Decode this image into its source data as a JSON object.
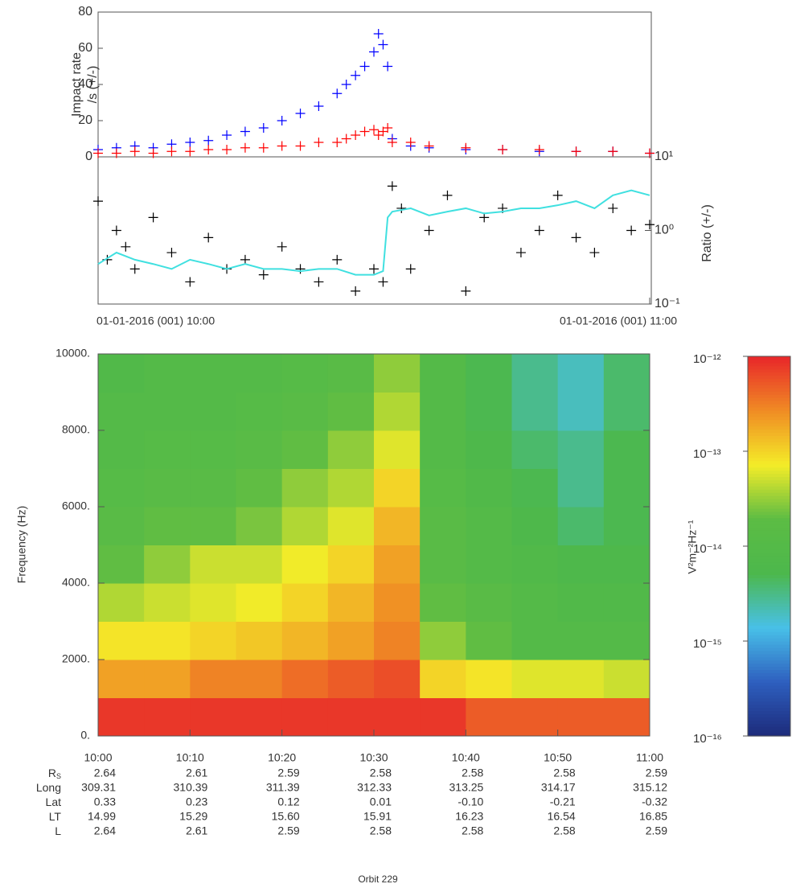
{
  "chart_data": [
    {
      "type": "scatter",
      "ylabel": [
        "Impact rate",
        "/s (+/-)"
      ],
      "xlim": [
        0,
        60
      ],
      "ylim": [
        0,
        80
      ],
      "yticks": [
        0,
        20,
        40,
        60,
        80
      ],
      "series": [
        {
          "color": "#0000ff",
          "x": [
            0,
            2,
            4,
            6,
            8,
            10,
            12,
            14,
            16,
            18,
            20,
            22,
            24,
            26,
            27,
            28,
            29,
            30,
            30.5,
            31,
            31.5,
            32,
            34,
            36,
            40,
            44,
            48,
            52,
            56,
            60
          ],
          "values": [
            4,
            5,
            6,
            5,
            7,
            8,
            9,
            12,
            14,
            16,
            20,
            24,
            28,
            35,
            40,
            45,
            50,
            58,
            68,
            62,
            50,
            10,
            6,
            5,
            4,
            4,
            3,
            3,
            3,
            2
          ]
        },
        {
          "color": "#ff0000",
          "x": [
            0,
            2,
            4,
            6,
            8,
            10,
            12,
            14,
            16,
            18,
            20,
            22,
            24,
            26,
            27,
            28,
            29,
            30,
            30.5,
            31,
            31.5,
            32,
            34,
            36,
            40,
            44,
            48,
            52,
            56,
            60
          ],
          "values": [
            2,
            2,
            3,
            2,
            3,
            3,
            4,
            4,
            5,
            5,
            6,
            6,
            8,
            8,
            10,
            12,
            14,
            15,
            12,
            14,
            16,
            8,
            8,
            6,
            5,
            4,
            4,
            3,
            3,
            2
          ]
        }
      ]
    },
    {
      "type": "scatter",
      "log": true,
      "ylabel": "Ratio (+/-)",
      "xlim": [
        0,
        60
      ],
      "xticks": [
        {
          "value": 0,
          "label": "01-01-2016 (001) 10:00"
        },
        {
          "value": 60,
          "label": "01-01-2016 (001) 11:00"
        }
      ],
      "ylim": [
        0.1,
        10
      ],
      "yticks": [
        {
          "value": 0.1,
          "label": "10⁻¹"
        },
        {
          "value": 1,
          "label": "10⁰"
        },
        {
          "value": 10,
          "label": "10¹"
        }
      ],
      "series": [
        {
          "color": "#000000",
          "x": [
            0,
            1,
            2,
            3,
            4,
            6,
            8,
            10,
            12,
            14,
            16,
            18,
            20,
            22,
            24,
            26,
            28,
            30,
            31,
            32,
            33,
            34,
            36,
            38,
            40,
            42,
            44,
            46,
            48,
            50,
            52,
            54,
            56,
            58,
            60
          ],
          "values": [
            2.5,
            0.4,
            1,
            0.6,
            0.3,
            1.5,
            0.5,
            0.2,
            0.8,
            0.3,
            0.4,
            0.25,
            0.6,
            0.3,
            0.2,
            0.4,
            0.15,
            0.3,
            0.2,
            4,
            2,
            0.3,
            1,
            3,
            0.15,
            1.5,
            2,
            0.5,
            1,
            3,
            0.8,
            0.5,
            2,
            1,
            1.2
          ]
        },
        {
          "type": "line",
          "color": "#40e0e0",
          "x": [
            0,
            2,
            4,
            6,
            8,
            10,
            12,
            14,
            16,
            18,
            20,
            22,
            24,
            26,
            28,
            30,
            31,
            31.5,
            32,
            34,
            36,
            38,
            40,
            42,
            44,
            46,
            48,
            50,
            52,
            54,
            56,
            58,
            60
          ],
          "values": [
            0.35,
            0.5,
            0.4,
            0.35,
            0.3,
            0.4,
            0.35,
            0.3,
            0.35,
            0.3,
            0.3,
            0.28,
            0.3,
            0.3,
            0.25,
            0.25,
            0.28,
            1.5,
            1.8,
            2,
            1.6,
            1.8,
            2,
            1.7,
            1.8,
            2,
            2,
            2.2,
            2.5,
            2,
            3,
            3.5,
            3
          ]
        }
      ]
    },
    {
      "type": "heatmap",
      "ylabel": "Frequency (Hz)",
      "xlim": [
        0,
        60
      ],
      "xticks": [
        {
          "value": 0,
          "label": "10:00"
        },
        {
          "value": 10,
          "label": "10:10"
        },
        {
          "value": 20,
          "label": "10:20"
        },
        {
          "value": 30,
          "label": "10:30"
        },
        {
          "value": 40,
          "label": "10:40"
        },
        {
          "value": 50,
          "label": "10:50"
        },
        {
          "value": 60,
          "label": "11:00"
        }
      ],
      "ylim": [
        0,
        10000
      ],
      "yticks": [
        {
          "value": 0,
          "label": "0."
        },
        {
          "value": 2000,
          "label": "2000."
        },
        {
          "value": 4000,
          "label": "4000."
        },
        {
          "value": 6000,
          "label": "6000."
        },
        {
          "value": 8000,
          "label": "8000."
        },
        {
          "value": 10000,
          "label": "10000."
        }
      ],
      "x": [
        0,
        5,
        10,
        15,
        20,
        25,
        30,
        35,
        40,
        45,
        50,
        55
      ],
      "y": [
        0,
        1000,
        2000,
        3000,
        4000,
        5000,
        6000,
        7000,
        8000,
        9000
      ],
      "values": [
        [
          8e-13,
          8e-13,
          8e-13,
          8e-13,
          8e-13,
          8e-13,
          8e-13,
          8e-13,
          5e-13,
          5e-13,
          5e-13,
          5e-13
        ],
        [
          2e-13,
          2e-13,
          3e-13,
          3e-13,
          4e-13,
          5e-13,
          6e-13,
          1e-13,
          8e-14,
          6e-14,
          6e-14,
          5e-14
        ],
        [
          8e-14,
          8e-14,
          1e-13,
          1.2e-13,
          1.5e-13,
          2e-13,
          3e-13,
          3e-14,
          2e-14,
          1e-14,
          1e-14,
          1e-14
        ],
        [
          4e-14,
          5e-14,
          6e-14,
          7e-14,
          1e-13,
          1.5e-13,
          2.5e-13,
          2e-14,
          1.5e-14,
          1e-14,
          8e-15,
          8e-15
        ],
        [
          2e-14,
          3e-14,
          5e-14,
          5e-14,
          7e-14,
          1e-13,
          2e-13,
          1.5e-14,
          1e-14,
          8e-15,
          6e-15,
          6e-15
        ],
        [
          1.5e-14,
          2e-14,
          2e-14,
          2.5e-14,
          4e-14,
          6e-14,
          1.5e-13,
          1.5e-14,
          1e-14,
          6e-15,
          4e-15,
          5e-15
        ],
        [
          1.2e-14,
          1.5e-14,
          1.5e-14,
          2e-14,
          3e-14,
          4e-14,
          1e-13,
          1.2e-14,
          8e-15,
          5e-15,
          3e-15,
          5e-15
        ],
        [
          1e-14,
          1.2e-14,
          1.2e-14,
          1.5e-14,
          2e-14,
          3e-14,
          6e-14,
          1e-14,
          6e-15,
          4e-15,
          3e-15,
          5e-15
        ],
        [
          1e-14,
          1e-14,
          1e-14,
          1.2e-14,
          1.5e-14,
          2e-14,
          4e-14,
          1e-14,
          5e-15,
          3e-15,
          2e-15,
          4e-15
        ],
        [
          8e-15,
          1e-14,
          1e-14,
          1e-14,
          1.2e-14,
          1.5e-14,
          3e-14,
          1e-14,
          5e-15,
          3e-15,
          2e-15,
          4e-15
        ]
      ],
      "zlim": [
        1e-16,
        1e-12
      ],
      "zlog": true,
      "zticks": [
        {
          "value": 1e-16,
          "label": "10⁻¹⁶"
        },
        {
          "value": 1e-15,
          "label": "10⁻¹⁵"
        },
        {
          "value": 1e-14,
          "label": "10⁻¹⁴"
        },
        {
          "value": 1e-13,
          "label": "10⁻¹³"
        },
        {
          "value": 1e-12,
          "label": "10⁻¹²"
        }
      ],
      "zlabel": "V²m⁻²Hz⁻¹",
      "colormap": [
        "#1c2a7a",
        "#2e5fbf",
        "#48c0e8",
        "#4cb84c",
        "#5cbc44",
        "#f4ec28",
        "#f08c24",
        "#e8262a"
      ]
    }
  ],
  "ephemeris": {
    "rows": [
      {
        "label": "R",
        "sub": "S",
        "values": [
          "2.64",
          "2.61",
          "2.59",
          "2.58",
          "2.58",
          "2.58",
          "2.59"
        ]
      },
      {
        "label": "Long",
        "values": [
          "309.31",
          "310.39",
          "311.39",
          "312.33",
          "313.25",
          "314.17",
          "315.12"
        ]
      },
      {
        "label": "Lat",
        "values": [
          "0.33",
          "0.23",
          "0.12",
          "0.01",
          "-0.10",
          "-0.21",
          "-0.32"
        ]
      },
      {
        "label": "LT",
        "values": [
          "14.99",
          "15.29",
          "15.60",
          "15.91",
          "16.23",
          "16.54",
          "16.85"
        ]
      },
      {
        "label": "L",
        "values": [
          "2.64",
          "2.61",
          "2.59",
          "2.58",
          "2.58",
          "2.58",
          "2.59"
        ]
      }
    ]
  },
  "footer": "Orbit 229"
}
